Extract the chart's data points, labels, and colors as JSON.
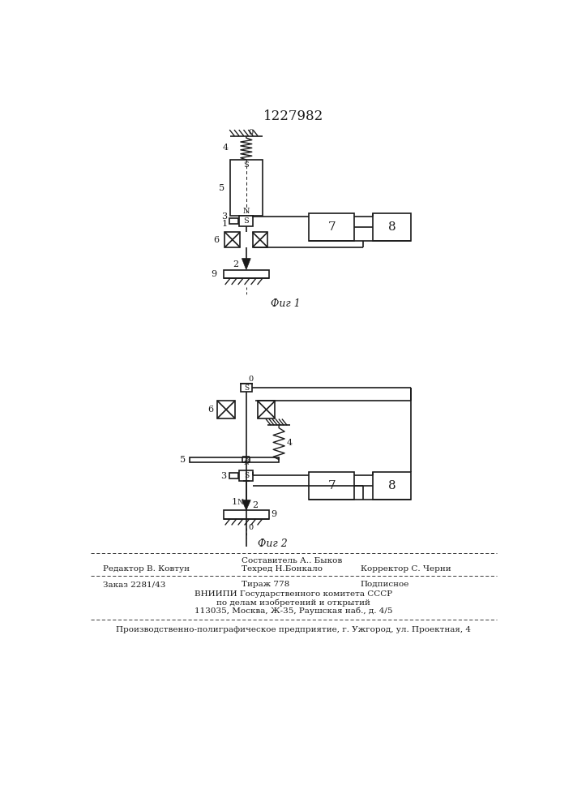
{
  "title": "1227982",
  "fig1_caption": "Фиг 1",
  "fig2_caption": "Фиг 2",
  "bg_color": "#ffffff",
  "line_color": "#1a1a1a",
  "footer_editor": "Редактор В. Ковтун",
  "footer_compiler": "Составитель А.. Быков",
  "footer_techred": "Техред Н.Бонкало",
  "footer_corrector": "Корректор С. Черни",
  "footer_order": "Заказ 2281/43",
  "footer_tirazh": "Тираж 778",
  "footer_podpisnoe": "Подписное",
  "footer_vniip1": "ВНИИПИ Государственного комитета СССР",
  "footer_vniip2": "по делам изобретений и открытий",
  "footer_vniip3": "113035, Москва, Ж-35, Раушская наб., д. 4/5",
  "footer_prod": "Производственно-полиграфическое предприятие, г. Ужгород, ул. Проектная, 4"
}
